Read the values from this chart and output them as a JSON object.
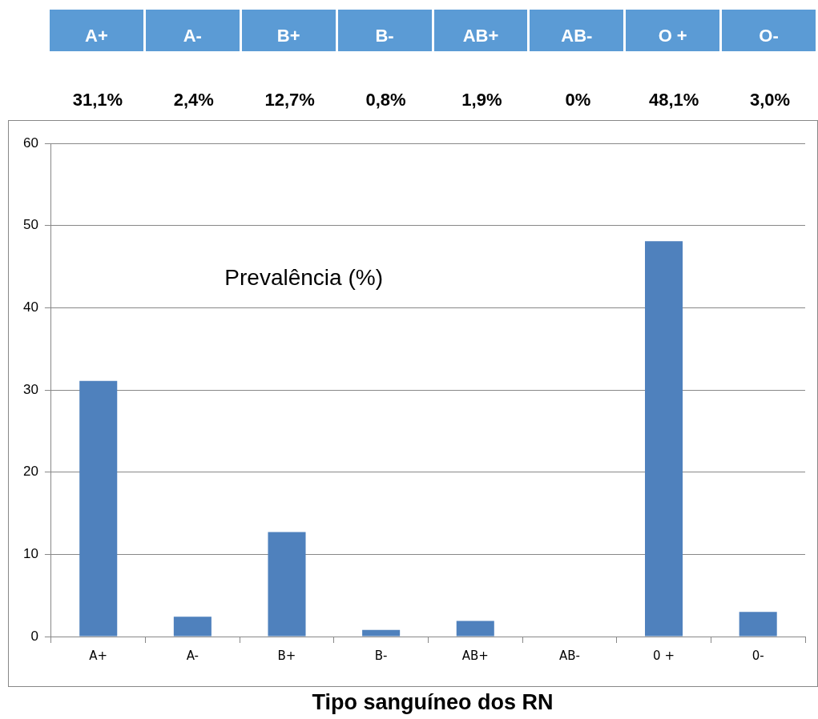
{
  "chart_data": {
    "type": "bar",
    "title": "Prevalência (%)",
    "xlabel": "Tipo sanguíneo dos RN",
    "annotations": [
      "A+",
      "A-",
      "B+",
      "B-",
      "AB+",
      "AB-",
      "O +",
      "O-"
    ],
    "categories": [
      "A+",
      "A-",
      "B+",
      "B-",
      "AB+",
      "AB-",
      "0 +",
      "0-"
    ],
    "values": [
      31.1,
      2.4,
      12.7,
      0.8,
      1.9,
      0,
      48.1,
      3.0
    ],
    "value_labels": [
      "31,1%",
      "2,4%",
      "12,7%",
      "0,8%",
      "1,9%",
      "0%",
      "48,1%",
      "3,0%"
    ],
    "color": "#4f81bd",
    "ylim": [
      0,
      60
    ],
    "yticks": [
      0,
      10,
      20,
      30,
      40,
      50,
      60
    ],
    "grid": "y"
  }
}
